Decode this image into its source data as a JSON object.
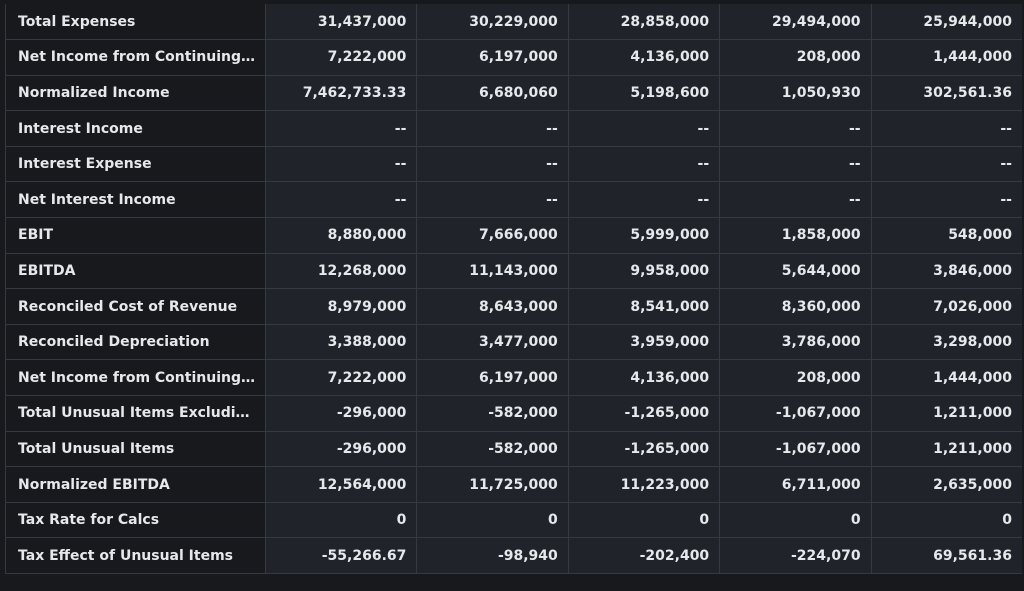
{
  "rows": [
    {
      "label": "Total Expenses",
      "values": [
        "31,437,000",
        "30,229,000",
        "28,858,000",
        "29,494,000",
        "25,944,000"
      ]
    },
    {
      "label": "Net Income from Continuing & D...",
      "values": [
        "7,222,000",
        "6,197,000",
        "4,136,000",
        "208,000",
        "1,444,000"
      ]
    },
    {
      "label": "Normalized Income",
      "values": [
        "7,462,733.33",
        "6,680,060",
        "5,198,600",
        "1,050,930",
        "302,561.36"
      ]
    },
    {
      "label": "Interest Income",
      "values": [
        "--",
        "--",
        "--",
        "--",
        "--"
      ]
    },
    {
      "label": "Interest Expense",
      "values": [
        "--",
        "--",
        "--",
        "--",
        "--"
      ]
    },
    {
      "label": "Net Interest Income",
      "values": [
        "--",
        "--",
        "--",
        "--",
        "--"
      ]
    },
    {
      "label": "EBIT",
      "values": [
        "8,880,000",
        "7,666,000",
        "5,999,000",
        "1,858,000",
        "548,000"
      ]
    },
    {
      "label": "EBITDA",
      "values": [
        "12,268,000",
        "11,143,000",
        "9,958,000",
        "5,644,000",
        "3,846,000"
      ]
    },
    {
      "label": "Reconciled Cost of Revenue",
      "values": [
        "8,979,000",
        "8,643,000",
        "8,541,000",
        "8,360,000",
        "7,026,000"
      ]
    },
    {
      "label": "Reconciled Depreciation",
      "values": [
        "3,388,000",
        "3,477,000",
        "3,959,000",
        "3,786,000",
        "3,298,000"
      ]
    },
    {
      "label": "Net Income from Continuing Op...",
      "values": [
        "7,222,000",
        "6,197,000",
        "4,136,000",
        "208,000",
        "1,444,000"
      ]
    },
    {
      "label": "Total Unusual Items Excluding G...",
      "values": [
        "-296,000",
        "-582,000",
        "-1,265,000",
        "-1,067,000",
        "1,211,000"
      ]
    },
    {
      "label": "Total Unusual Items",
      "values": [
        "-296,000",
        "-582,000",
        "-1,265,000",
        "-1,067,000",
        "1,211,000"
      ]
    },
    {
      "label": "Normalized EBITDA",
      "values": [
        "12,564,000",
        "11,725,000",
        "11,223,000",
        "6,711,000",
        "2,635,000"
      ]
    },
    {
      "label": "Tax Rate for Calcs",
      "values": [
        "0",
        "0",
        "0",
        "0",
        "0"
      ]
    },
    {
      "label": "Tax Effect of Unusual Items",
      "values": [
        "-55,266.67",
        "-98,940",
        "-202,400",
        "-224,070",
        "69,561.36"
      ]
    }
  ]
}
